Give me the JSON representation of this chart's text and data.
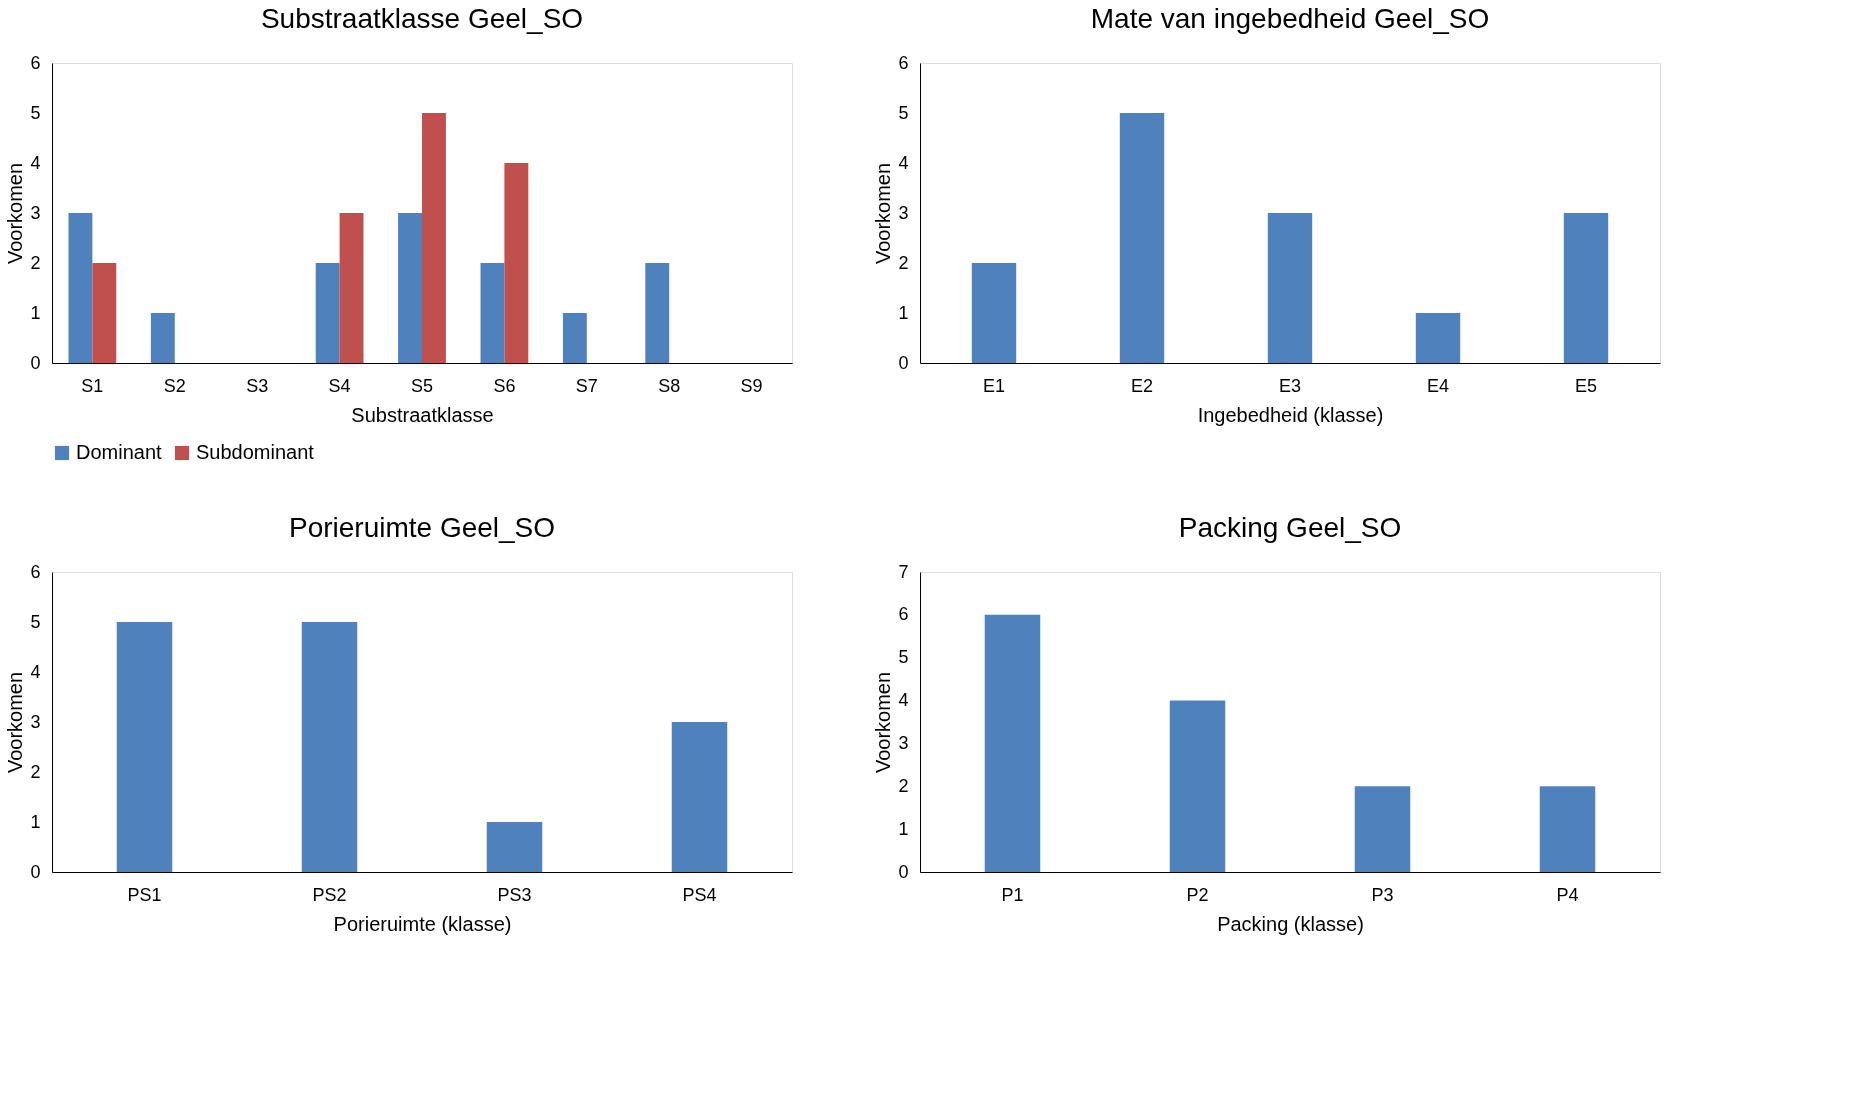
{
  "chart_data": [
    {
      "type": "bar",
      "title": "Substraatklasse Geel_SO",
      "xlabel": "Substraatklasse",
      "ylabel": "Voorkomen",
      "categories": [
        "S1",
        "S2",
        "S3",
        "S4",
        "S5",
        "S6",
        "S7",
        "S8",
        "S9"
      ],
      "series": [
        {
          "name": "Dominant",
          "color": "#4f81bd",
          "values": [
            3,
            1,
            0,
            2,
            3,
            2,
            1,
            2,
            0
          ]
        },
        {
          "name": "Subdominant",
          "color": "#c0504d",
          "values": [
            2,
            0,
            0,
            3,
            5,
            4,
            0,
            0,
            0
          ]
        }
      ],
      "ylim": [
        0,
        6
      ],
      "yticks": [
        0,
        1,
        2,
        3,
        4,
        5,
        6
      ],
      "grid": false,
      "legend": "bottom"
    },
    {
      "type": "bar",
      "title": "Mate van ingebedheid Geel_SO",
      "xlabel": "Ingebedheid (klasse)",
      "ylabel": "Voorkomen",
      "categories": [
        "E1",
        "E2",
        "E3",
        "E4",
        "E5"
      ],
      "series": [
        {
          "color": "#4f81bd",
          "values": [
            2,
            5,
            3,
            1,
            3
          ]
        }
      ],
      "ylim": [
        0,
        6
      ],
      "yticks": [
        0,
        1,
        2,
        3,
        4,
        5,
        6
      ],
      "grid": false
    },
    {
      "type": "bar",
      "title": "Porieruimte Geel_SO",
      "xlabel": "Porieruimte (klasse)",
      "ylabel": "Voorkomen",
      "categories": [
        "PS1",
        "PS2",
        "PS3",
        "PS4"
      ],
      "series": [
        {
          "color": "#4f81bd",
          "values": [
            5,
            5,
            1,
            3
          ]
        }
      ],
      "ylim": [
        0,
        6
      ],
      "yticks": [
        0,
        1,
        2,
        3,
        4,
        5,
        6
      ],
      "grid": false
    },
    {
      "type": "bar",
      "title": "Packing Geel_SO",
      "xlabel": "Packing (klasse)",
      "ylabel": "Voorkomen",
      "categories": [
        "P1",
        "P2",
        "P3",
        "P4"
      ],
      "series": [
        {
          "color": "#4f81bd",
          "values": [
            6,
            4,
            2,
            2
          ]
        }
      ],
      "ylim": [
        0,
        7
      ],
      "yticks": [
        0,
        1,
        2,
        3,
        4,
        5,
        6,
        7
      ],
      "grid": false
    }
  ]
}
